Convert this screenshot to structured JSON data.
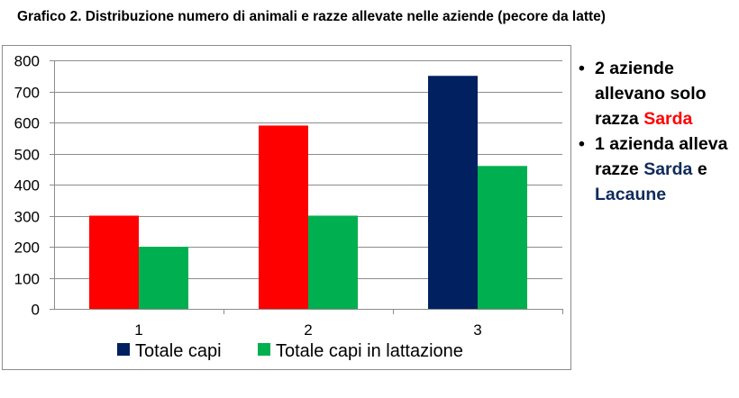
{
  "chart_data": {
    "type": "bar",
    "title": "Grafico 2. Distribuzione numero di animali e razze allevate nelle aziende (pecore da latte)",
    "categories": [
      "1",
      "2",
      "3"
    ],
    "ylim": [
      0,
      800
    ],
    "yticks": [
      "0",
      "100",
      "200",
      "300",
      "400",
      "500",
      "600",
      "700",
      "800"
    ],
    "grid": true,
    "legend_position": "bottom",
    "series": [
      {
        "name": "Totale capi",
        "values": [
          300,
          590,
          750
        ],
        "color": "#002060",
        "bar_colors": [
          "#ff0000",
          "#ff0000",
          "#002060"
        ]
      },
      {
        "name": "Totale capi in lattazione",
        "values": [
          200,
          300,
          460
        ],
        "color": "#00b050",
        "bar_colors": [
          "#00b050",
          "#00b050",
          "#00b050"
        ]
      }
    ]
  },
  "notes": [
    {
      "pre": "2 aziende allevano solo razza ",
      "h1": "Sarda",
      "mid": "",
      "h2": ""
    },
    {
      "pre": "1 azienda alleva razze ",
      "h1": "Sarda",
      "mid": " e ",
      "h2": "Lacaune"
    }
  ]
}
